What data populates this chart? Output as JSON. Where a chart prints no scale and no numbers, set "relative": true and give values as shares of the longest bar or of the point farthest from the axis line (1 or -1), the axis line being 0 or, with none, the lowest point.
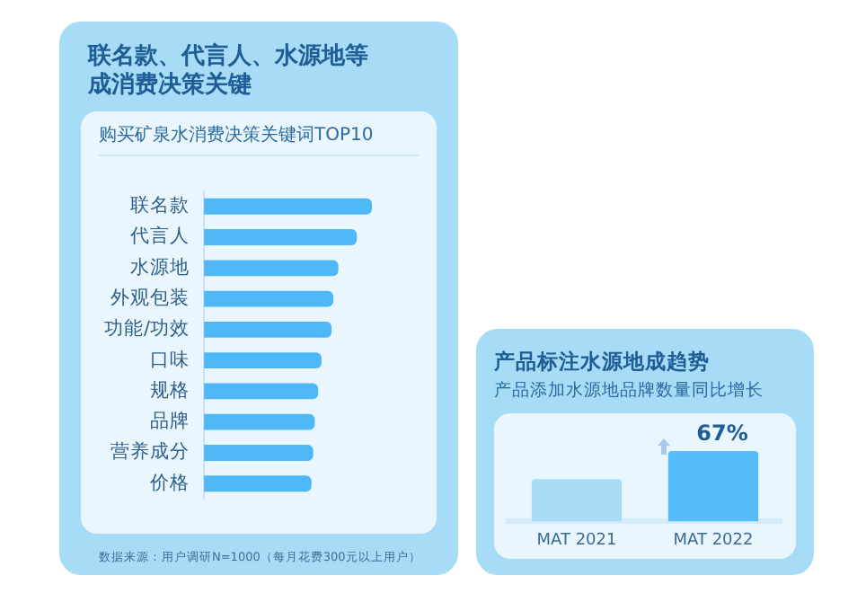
{
  "chart_data": [
    {
      "type": "bar",
      "orientation": "horizontal",
      "relative": true,
      "title": "联名款、代言人、水源地等成消费决策关键",
      "subtitle": "购买矿泉水消费决策关键词TOP10",
      "categories": [
        "联名款",
        "代言人",
        "水源地",
        "外观包装",
        "功能/功效",
        "口味",
        "规格",
        "品牌",
        "营养成分",
        "价格"
      ],
      "values": [
        1,
        0.91,
        0.8,
        0.77,
        0.76,
        0.7,
        0.68,
        0.66,
        0.65,
        0.64
      ],
      "color": "#4db8f5",
      "grid": false,
      "legend": false,
      "annotations": [
        "数据来源：用户调研N=1000（每月花费300元以上用户）"
      ]
    },
    {
      "type": "bar",
      "relative": true,
      "title": "产品标注水源地成趋势",
      "subtitle": "产品添加水源地品牌数量同比增长",
      "categories": [
        "MAT 2021",
        "MAT 2022"
      ],
      "values": [
        0.6,
        1
      ],
      "colors": [
        "#a8dcf6",
        "#55bdf9"
      ],
      "grid": false,
      "legend": false,
      "annotations": [
        {
          "text": "67%",
          "x": "MAT 2022",
          "y": 1
        }
      ]
    }
  ]
}
